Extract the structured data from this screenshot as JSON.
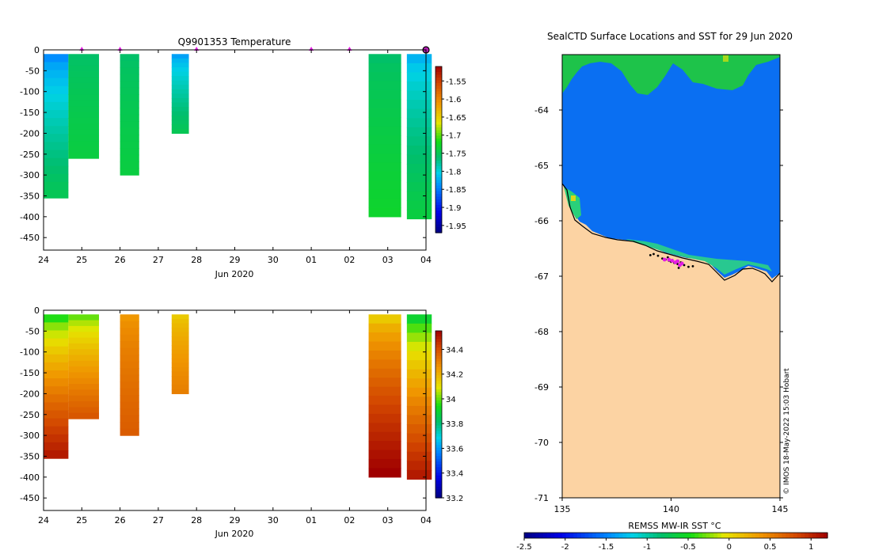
{
  "chart_data": [
    {
      "type": "heatmap",
      "title": "Q9901353  Temperature",
      "xlabel": "Jun 2020",
      "x_ticks": [
        "24",
        "25",
        "26",
        "27",
        "28",
        "29",
        "30",
        "01",
        "02",
        "03",
        "04"
      ],
      "y_ticks": [
        "0",
        "-50",
        "-100",
        "-150",
        "-200",
        "-250",
        "-300",
        "-350",
        "-400",
        "-450"
      ],
      "ylim": [
        -480,
        0
      ],
      "profile_markers_day": [
        1.0,
        2.0,
        4.0,
        7.0,
        8.0,
        10.0
      ],
      "last_marker_day": 10.0,
      "colorbar": {
        "min": -1.97,
        "max": -1.51,
        "ticks": [
          "-1.55",
          "-1.6",
          "-1.65",
          "-1.7",
          "-1.75",
          "-1.8",
          "-1.85",
          "-1.9",
          "-1.95"
        ],
        "tick_values": [
          -1.55,
          -1.6,
          -1.65,
          -1.7,
          -1.75,
          -1.8,
          -1.85,
          -1.9,
          -1.95
        ]
      },
      "profiles": [
        {
          "x_start_day": 0.0,
          "x_end_day": 0.65,
          "max_depth": 355,
          "top_value": -1.84,
          "bottom_value": -1.75
        },
        {
          "x_start_day": 0.65,
          "x_end_day": 1.45,
          "max_depth": 260,
          "top_value": -1.76,
          "bottom_value": -1.74
        },
        {
          "x_start_day": 2.0,
          "x_end_day": 2.5,
          "max_depth": 300,
          "top_value": -1.76,
          "bottom_value": -1.74
        },
        {
          "x_start_day": 3.35,
          "x_end_day": 3.8,
          "max_depth": 200,
          "top_value": -1.83,
          "bottom_value": -1.75
        },
        {
          "x_start_day": 8.5,
          "x_end_day": 9.35,
          "max_depth": 400,
          "top_value": -1.76,
          "bottom_value": -1.73
        },
        {
          "x_start_day": 9.5,
          "x_end_day": 10.15,
          "max_depth": 405,
          "top_value": -1.82,
          "bottom_value": -1.74
        }
      ]
    },
    {
      "type": "heatmap",
      "title": "",
      "xlabel": "Jun 2020",
      "x_ticks": [
        "24",
        "25",
        "26",
        "27",
        "28",
        "29",
        "30",
        "01",
        "02",
        "03",
        "04"
      ],
      "y_ticks": [
        "0",
        "-50",
        "-100",
        "-150",
        "-200",
        "-250",
        "-300",
        "-350",
        "-400",
        "-450"
      ],
      "ylim": [
        -480,
        0
      ],
      "colorbar": {
        "min": 33.2,
        "max": 34.55,
        "ticks": [
          "34.4",
          "34.2",
          "34",
          "33.8",
          "33.6",
          "33.4",
          "33.2"
        ],
        "tick_values": [
          34.4,
          34.2,
          34.0,
          33.8,
          33.6,
          33.4,
          33.2
        ]
      },
      "profiles": [
        {
          "x_start_day": 0.0,
          "x_end_day": 0.65,
          "max_depth": 355,
          "top_value": 33.95,
          "bottom_value": 34.5
        },
        {
          "x_start_day": 0.65,
          "x_end_day": 1.45,
          "max_depth": 260,
          "top_value": 34.0,
          "bottom_value": 34.38
        },
        {
          "x_start_day": 2.0,
          "x_end_day": 2.5,
          "max_depth": 300,
          "top_value": 34.25,
          "bottom_value": 34.37
        },
        {
          "x_start_day": 3.35,
          "x_end_day": 3.8,
          "max_depth": 200,
          "top_value": 34.15,
          "bottom_value": 34.3
        },
        {
          "x_start_day": 8.5,
          "x_end_day": 9.35,
          "max_depth": 400,
          "top_value": 34.15,
          "bottom_value": 34.55
        },
        {
          "x_start_day": 9.5,
          "x_end_day": 10.15,
          "max_depth": 405,
          "top_value": 33.9,
          "bottom_value": 34.5
        }
      ]
    },
    {
      "type": "heatmap",
      "title": "SealCTD Surface Locations and SST for 29 Jun 2020",
      "xlabel": "REMSS MW-IR SST °C",
      "x_ticks": [
        "135",
        "140",
        "145"
      ],
      "x_tick_values": [
        135,
        140,
        145
      ],
      "y_ticks": [
        "-64",
        "-65",
        "-66",
        "-67",
        "-68",
        "-69",
        "-70",
        "-71"
      ],
      "y_tick_values": [
        -64,
        -65,
        -66,
        -67,
        -68,
        -69,
        -70,
        -71
      ],
      "xlim": [
        135,
        145
      ],
      "ylim": [
        -71,
        -63
      ],
      "colorbar": {
        "min": -2.5,
        "max": 1.2,
        "ticks": [
          "-2.5",
          "-2",
          "-1.5",
          "-1",
          "-0.5",
          "0",
          "0.5",
          "1"
        ],
        "tick_values": [
          -2.5,
          -2,
          -1.5,
          -1,
          -0.5,
          0,
          0.5,
          1
        ]
      },
      "seal_positions": [
        [
          139.4,
          -66.63
        ],
        [
          139.6,
          -66.68
        ],
        [
          139.75,
          -66.7
        ],
        [
          139.9,
          -66.72
        ],
        [
          140.0,
          -66.74
        ],
        [
          140.15,
          -66.76
        ],
        [
          140.3,
          -66.78
        ],
        [
          140.45,
          -66.75
        ],
        [
          140.6,
          -66.8
        ],
        [
          140.8,
          -66.83
        ],
        [
          141.0,
          -66.82
        ],
        [
          139.2,
          -66.6
        ],
        [
          139.05,
          -66.62
        ],
        [
          140.35,
          -66.85
        ],
        [
          139.85,
          -66.66
        ]
      ],
      "recent_positions": [
        [
          139.9,
          -66.7
        ],
        [
          140.05,
          -66.72
        ],
        [
          140.2,
          -66.75
        ],
        [
          140.4,
          -66.8
        ],
        [
          140.5,
          -66.77
        ],
        [
          139.7,
          -66.7
        ],
        [
          140.3,
          -66.73
        ]
      ],
      "credit": "© IMOS 18-May-2022 15:03 Hobart"
    }
  ]
}
